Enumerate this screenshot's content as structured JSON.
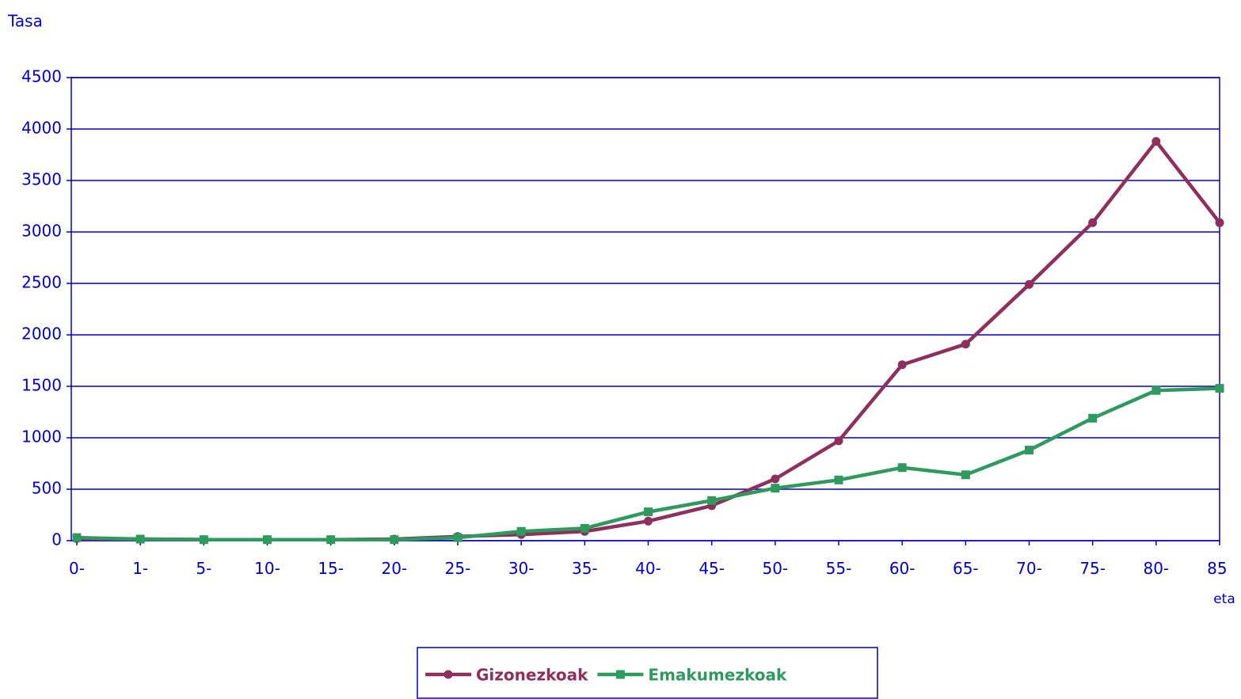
{
  "chart_data": {
    "type": "line",
    "y_label": "Tasa",
    "categories": [
      "0-",
      "1-",
      "5-",
      "10-",
      "15-",
      "20-",
      "25-",
      "30-",
      "35-",
      "40-",
      "45-",
      "50-",
      "55-",
      "60-",
      "65-",
      "70-",
      "75-",
      "80-",
      "85 eta"
    ],
    "series": [
      {
        "name": "Gizonezkoak",
        "color": "#8e2f5e",
        "marker": "circle",
        "values": [
          20,
          15,
          10,
          10,
          10,
          15,
          40,
          60,
          90,
          190,
          340,
          600,
          970,
          1710,
          1910,
          2490,
          3090,
          3880,
          3090
        ]
      },
      {
        "name": "Emakumezkoak",
        "color": "#2e9a5e",
        "marker": "square",
        "values": [
          30,
          15,
          10,
          10,
          10,
          10,
          30,
          90,
          120,
          280,
          390,
          510,
          590,
          710,
          640,
          880,
          1190,
          1460,
          1480
        ]
      }
    ],
    "ylim": [
      0,
      4500
    ],
    "yticks": [
      0,
      500,
      1000,
      1500,
      2000,
      2500,
      3000,
      3500,
      4000,
      4500
    ],
    "grid": true,
    "legend": "bottom"
  }
}
